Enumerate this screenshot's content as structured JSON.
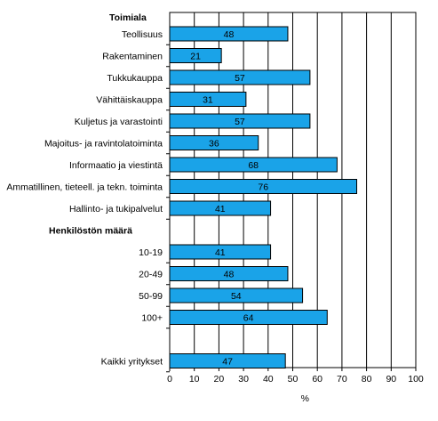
{
  "chart_data": {
    "type": "bar",
    "orientation": "horizontal",
    "xlabel": "%",
    "xlim": [
      0,
      100
    ],
    "xticks": [
      0,
      10,
      20,
      30,
      40,
      50,
      60,
      70,
      80,
      90,
      100
    ],
    "grid": true,
    "bar_color": "#1aa3e8",
    "groups": [
      {
        "label": "Toimiala",
        "categories": [
          "Teollisuus",
          "Rakentaminen",
          "Tukkukauppa",
          "Vähittäiskauppa",
          "Kuljetus ja varastointi",
          "Majoitus- ja ravintolatoiminta",
          "Informaatio ja viestintä",
          "Ammatillinen, tieteell. ja tekn. toiminta",
          "Hallinto- ja tukipalvelut"
        ],
        "values": [
          48,
          21,
          57,
          31,
          57,
          36,
          68,
          76,
          41
        ]
      },
      {
        "label": "Henkilöstön määrä",
        "categories": [
          "10-19",
          "20-49",
          "50-99",
          "100+"
        ],
        "values": [
          41,
          48,
          54,
          64
        ]
      },
      {
        "label": "",
        "categories": [
          "Kaikki yritykset"
        ],
        "values": [
          47
        ]
      }
    ]
  }
}
